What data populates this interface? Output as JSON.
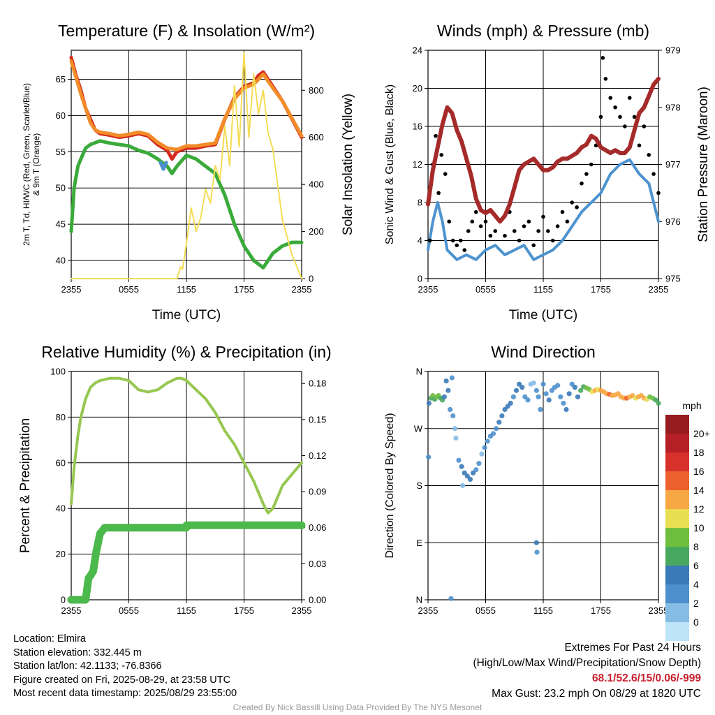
{
  "footer": {
    "location": "Location: Elmira",
    "elevation": "Station elevation: 332.445 m",
    "latlon": "Station lat/lon: 42.1133; -76.8366",
    "created": "Figure created on Fri, 2025-08-29, at 23:58 UTC",
    "recent": "Most recent data timestamp: 2025/08/29 23:55:00",
    "extremes_title": "Extremes For Past 24 Hours",
    "extremes_sub": "(High/Low/Max Wind/Precipitation/Snow Depth)",
    "extremes_values": "68.1/52.6/15/0.06/-999",
    "max_gust": "Max Gust: 23.2 mph On 08/29 at 1820 UTC",
    "credit": "Created By Nick Bassill Using Data Provided By The NYS Mesonet"
  },
  "chart_data": [
    {
      "type": "line",
      "title": "Temperature (F) & Insolation (W/m²)",
      "xlabel": "Time (UTC)",
      "ylabel_left": "2m T, Td, HI/WC (Red, Green, Scarlet/Blue) & 9m T (Orange)",
      "ylabel_right": "Solar Insolation (Yellow)",
      "xticks": [
        "2355",
        "0555",
        "1155",
        "1755",
        "2355"
      ],
      "yticks_left": [
        40,
        45,
        50,
        55,
        60,
        65
      ],
      "yticks_right": [
        0,
        200,
        400,
        600,
        800
      ],
      "xlim": [
        0,
        24
      ],
      "ylim_left": [
        37.5,
        69
      ],
      "ylim_right": [
        0,
        970
      ],
      "grid": true,
      "series": [
        {
          "name": "2m T",
          "color": "#d52a1e",
          "axis": "left",
          "x": [
            0,
            0.5,
            1,
            1.5,
            2,
            2.5,
            3,
            4,
            5,
            6,
            7,
            8,
            9,
            10,
            10.5,
            11,
            12,
            13,
            14,
            15,
            16,
            17,
            18,
            19,
            19.5,
            20,
            20.5,
            21,
            22,
            23,
            24
          ],
          "values": [
            68,
            65.5,
            63.5,
            61,
            59.5,
            58,
            57.5,
            57.3,
            57,
            57.2,
            57.5,
            57.2,
            56,
            55.2,
            54,
            55,
            55.5,
            55.5,
            55.8,
            56,
            59.5,
            62.5,
            64,
            64.5,
            65.5,
            66,
            65,
            64,
            62,
            59.5,
            57
          ]
        },
        {
          "name": "9m T",
          "color": "#f28c28",
          "axis": "left",
          "x": [
            0,
            1,
            2,
            2.5,
            3,
            4,
            5,
            6,
            7,
            8,
            9,
            10,
            11,
            12,
            13,
            14,
            15,
            16,
            17,
            18,
            19,
            20,
            21,
            22,
            23,
            24
          ],
          "values": [
            67.5,
            63,
            59,
            58,
            57.7,
            57.5,
            57.2,
            57.4,
            57.7,
            57.4,
            56.3,
            55.5,
            55.3,
            55.8,
            55.8,
            56,
            56.2,
            59.6,
            62.3,
            63.8,
            64.3,
            65.7,
            63.8,
            62,
            59.6,
            57.2
          ]
        },
        {
          "name": "2m Td",
          "color": "#3aaa3a",
          "axis": "left",
          "x": [
            0,
            0.3,
            0.7,
            1,
            1.5,
            2,
            3,
            4,
            5,
            6,
            7,
            8,
            9,
            10,
            10.5,
            11,
            12,
            13,
            14,
            15,
            16,
            17,
            18,
            19,
            20,
            21,
            22,
            23,
            24
          ],
          "values": [
            44,
            50,
            53,
            54,
            55.5,
            56,
            56.5,
            56.2,
            56,
            55.8,
            55.2,
            54.8,
            54,
            53,
            52,
            53,
            54.5,
            54,
            53,
            52,
            49,
            45,
            42,
            40,
            39,
            41,
            42,
            42.5,
            42.5
          ]
        },
        {
          "name": "HI/WC",
          "color": "#4d8fcf",
          "axis": "left",
          "x": [
            9.3,
            9.6,
            9.9
          ],
          "values": [
            53.5,
            52.6,
            53.5
          ]
        },
        {
          "name": "Solar Insolation",
          "color": "#f5dc55",
          "axis": "right",
          "x": [
            0,
            11,
            11.4,
            11.6,
            12,
            12.5,
            13,
            13.5,
            14,
            14.5,
            15,
            15.5,
            16,
            16.5,
            17,
            17.5,
            18,
            18.5,
            19,
            19.5,
            20,
            20.5,
            21,
            22,
            23,
            24
          ],
          "values": [
            0,
            0,
            50,
            40,
            150,
            300,
            200,
            260,
            380,
            320,
            480,
            420,
            650,
            480,
            820,
            560,
            960,
            600,
            870,
            700,
            800,
            620,
            550,
            250,
            100,
            0
          ]
        }
      ]
    },
    {
      "type": "line",
      "title": "Winds (mph) & Pressure (mb)",
      "xlabel": "Time (UTC)",
      "ylabel_left": "Sonic Wind & Gust (Blue, Black)",
      "ylabel_right": "Station Pressure (Maroon)",
      "xticks": [
        "2355",
        "0555",
        "1155",
        "1755",
        "2355"
      ],
      "yticks_left": [
        0,
        4,
        8,
        12,
        16,
        20,
        24
      ],
      "yticks_right": [
        975,
        976,
        977,
        978,
        979
      ],
      "xlim": [
        0,
        24
      ],
      "ylim_left": [
        0,
        24
      ],
      "ylim_right": [
        975,
        979
      ],
      "grid": true,
      "series": [
        {
          "name": "Sonic Wind",
          "color": "#4d93cf",
          "axis": "left",
          "x": [
            0,
            0.5,
            1,
            1.5,
            2,
            3,
            4,
            5,
            6,
            7,
            8,
            9,
            10,
            11,
            12,
            13,
            14,
            15,
            16,
            17,
            18,
            19,
            20,
            21,
            22,
            23,
            24
          ],
          "values": [
            3,
            6,
            8,
            6,
            3,
            2,
            2.5,
            2,
            3,
            3.5,
            2.5,
            3,
            3.5,
            2,
            2.5,
            3,
            4,
            5.5,
            7,
            8,
            9,
            11,
            12,
            12.5,
            11,
            10,
            6
          ]
        },
        {
          "name": "Gust",
          "color": "#000000",
          "axis": "left",
          "x": [
            0.2,
            0.5,
            0.8,
            1.1,
            1.4,
            1.8,
            2.2,
            2.6,
            3,
            3.4,
            3.8,
            4.2,
            4.6,
            5,
            5.5,
            6,
            6.5,
            7,
            7.5,
            8,
            8.5,
            9,
            9.5,
            10,
            10.5,
            11,
            11.5,
            12,
            12.5,
            13,
            13.5,
            14,
            14.5,
            15,
            15.5,
            16,
            16.5,
            17,
            17.5,
            18,
            18.2,
            18.5,
            19,
            19.5,
            20,
            20.5,
            21,
            21.5,
            22,
            22.5,
            23,
            23.5,
            24
          ],
          "values": [
            4,
            12,
            15,
            9,
            13,
            11,
            6,
            4,
            3.5,
            4,
            3,
            5,
            6,
            7,
            5.5,
            6,
            4.5,
            5,
            6,
            4.5,
            7,
            5,
            4,
            5.5,
            6,
            3.5,
            5,
            6.5,
            5,
            4,
            5.5,
            7,
            6,
            8,
            7.5,
            10,
            11,
            12,
            14,
            17,
            23.2,
            21,
            19,
            18,
            17,
            16,
            19,
            17,
            14,
            16,
            13,
            11,
            9
          ]
        },
        {
          "name": "Station Pressure",
          "color": "#a52a2a",
          "axis": "right",
          "x": [
            0,
            0.5,
            1,
            1.5,
            2,
            2.5,
            3,
            3.5,
            4,
            4.5,
            5,
            5.5,
            6,
            6.5,
            7,
            7.5,
            8,
            8.5,
            9,
            9.5,
            10,
            10.5,
            11,
            11.5,
            12,
            12.5,
            13,
            13.5,
            14,
            14.5,
            15,
            15.5,
            16,
            16.5,
            17,
            17.5,
            18,
            18.5,
            19,
            19.5,
            20,
            20.5,
            21,
            21.5,
            22,
            22.5,
            23,
            23.5,
            24
          ],
          "values": [
            976.3,
            976.9,
            977.3,
            977.7,
            978.0,
            977.9,
            977.6,
            977.4,
            977.1,
            976.8,
            976.4,
            976.2,
            976.15,
            976.2,
            976.1,
            976.0,
            976.1,
            976.3,
            976.6,
            976.9,
            977.0,
            977.05,
            977.1,
            977.0,
            976.9,
            976.9,
            976.95,
            977.05,
            977.1,
            977.1,
            977.15,
            977.2,
            977.3,
            977.35,
            977.5,
            977.45,
            977.3,
            977.25,
            977.2,
            977.25,
            977.2,
            977.2,
            977.3,
            977.6,
            977.9,
            978.0,
            978.2,
            978.4,
            978.5
          ]
        }
      ]
    },
    {
      "type": "line",
      "title": "Relative Humidity (%) & Precipitation (in)",
      "ylabel_left": "Percent & Precipitation",
      "xticks": [
        "2355",
        "0555",
        "1155",
        "1755",
        "2355"
      ],
      "yticks_left": [
        0,
        20,
        40,
        60,
        80,
        100
      ],
      "yticks_right": [
        "0.00",
        "0.03",
        "0.06",
        "0.09",
        "0.12",
        "0.15",
        "0.18"
      ],
      "xlim": [
        0,
        24
      ],
      "ylim_left": [
        0,
        100
      ],
      "ylim_right": [
        0,
        0.19
      ],
      "grid": true,
      "series": [
        {
          "name": "Relative Humidity",
          "color": "#96c750",
          "axis": "left",
          "x": [
            0,
            0.3,
            0.7,
            1,
            1.5,
            2,
            2.5,
            3,
            4,
            5,
            6,
            6.5,
            7,
            8,
            9,
            10,
            11,
            11.5,
            12,
            13,
            14,
            15,
            16,
            17,
            18,
            19,
            20,
            20.5,
            21,
            22,
            23,
            24
          ],
          "values": [
            42,
            58,
            72,
            80,
            88,
            93,
            95,
            96,
            97,
            97,
            96,
            94,
            92,
            91,
            92,
            95,
            97,
            97,
            96,
            92,
            88,
            82,
            74,
            68,
            60,
            52,
            42,
            38,
            40,
            50,
            55,
            60
          ]
        },
        {
          "name": "Precipitation",
          "color": "#4cb94c",
          "axis": "right",
          "x": [
            0,
            1,
            1.5,
            1.8,
            2,
            2.3,
            2.6,
            3,
            3.5,
            4,
            5,
            8,
            10,
            12,
            12.01,
            14,
            18,
            24
          ],
          "values": [
            0,
            0,
            0,
            0.018,
            0.02,
            0.024,
            0.04,
            0.055,
            0.06,
            0.06,
            0.06,
            0.06,
            0.06,
            0.06,
            0.062,
            0.062,
            0.062,
            0.062
          ]
        }
      ]
    },
    {
      "type": "scatter",
      "title": "Wind Direction",
      "ylabel_left": "Direction (Colored By Speed)",
      "xticks": [
        "2355",
        "0555",
        "1155",
        "1755",
        "2355"
      ],
      "yticks_left": [
        "N",
        "E",
        "S",
        "W",
        "N"
      ],
      "xlim": [
        0,
        24
      ],
      "ylim_left": [
        0,
        360
      ],
      "grid": true,
      "colorbar_unit": "mph",
      "colorbar_labels": [
        "0",
        "2",
        "4",
        "6",
        "8",
        "10",
        "12",
        "14",
        "16",
        "18",
        "20+"
      ],
      "colorbar_colors": [
        "#bde4f7",
        "#86bde5",
        "#4d90cd",
        "#3a7ab8",
        "#49a860",
        "#6fbf3f",
        "#e9df52",
        "#f7a743",
        "#ec612d",
        "#d8312c",
        "#b42025",
        "#971c1f"
      ],
      "points": {
        "x": [
          0.1,
          0.3,
          0.5,
          0.7,
          0.9,
          1.1,
          1.3,
          1.5,
          1.7,
          1.9,
          2.1,
          2.3,
          2.6,
          2.9,
          3.2,
          3.5,
          3.8,
          4.1,
          4.4,
          4.7,
          5.0,
          5.3,
          5.6,
          5.9,
          6.2,
          6.5,
          6.8,
          7.1,
          7.4,
          7.7,
          8.0,
          8.3,
          8.6,
          8.9,
          9.2,
          9.5,
          9.8,
          10.1,
          10.4,
          10.7,
          11.0,
          11.3,
          11.5,
          11.7,
          12.0,
          12.3,
          12.6,
          12.9,
          13.2,
          13.5,
          13.8,
          14.1,
          14.4,
          14.7,
          15.0,
          15.3,
          15.6,
          15.9,
          16.2,
          16.5,
          16.8,
          17.1,
          17.4,
          17.7,
          18.0,
          18.3,
          18.6,
          18.9,
          19.2,
          19.5,
          19.8,
          20.1,
          20.4,
          20.7,
          21.0,
          21.3,
          21.6,
          21.9,
          22.2,
          22.5,
          22.8,
          23.1,
          23.4,
          23.7,
          24.0,
          0.05,
          2.4,
          2.5,
          3.6,
          11.3,
          11.35,
          2.8
        ],
        "y": [
          310,
          318,
          322,
          316,
          320,
          322,
          318,
          315,
          320,
          345,
          330,
          300,
          290,
          255,
          220,
          210,
          200,
          195,
          190,
          200,
          205,
          215,
          230,
          240,
          250,
          258,
          262,
          270,
          280,
          290,
          300,
          305,
          310,
          320,
          330,
          340,
          335,
          320,
          315,
          340,
          342,
          330,
          320,
          300,
          340,
          325,
          315,
          330,
          335,
          338,
          320,
          310,
          300,
          325,
          340,
          335,
          320,
          330,
          336,
          334,
          332,
          328,
          330,
          332,
          330,
          328,
          325,
          324,
          322,
          323,
          325,
          320,
          318,
          318,
          320,
          322,
          318,
          320,
          322,
          318,
          316,
          320,
          318,
          315,
          310,
          225,
          2,
          350,
          180,
          90,
          75,
          270
        ],
        "speed": [
          5,
          7,
          8,
          7,
          9,
          8,
          7,
          6,
          5,
          4,
          4,
          3,
          2,
          1,
          3,
          4,
          5,
          4,
          5,
          4,
          3,
          2,
          1,
          2,
          3,
          3,
          2,
          3,
          4,
          4,
          5,
          5,
          4,
          3,
          4,
          5,
          4,
          3,
          2,
          1,
          1,
          2,
          2,
          3,
          2,
          3,
          4,
          3,
          3,
          2,
          2,
          3,
          4,
          4,
          3,
          4,
          5,
          6,
          7,
          8,
          9,
          10,
          12,
          11,
          13,
          12,
          13,
          14,
          12,
          13,
          12,
          13,
          12,
          14,
          13,
          12,
          11,
          12,
          13,
          12,
          10,
          9,
          8,
          7,
          6,
          3,
          2,
          2,
          1,
          4,
          3,
          1
        ]
      }
    }
  ]
}
